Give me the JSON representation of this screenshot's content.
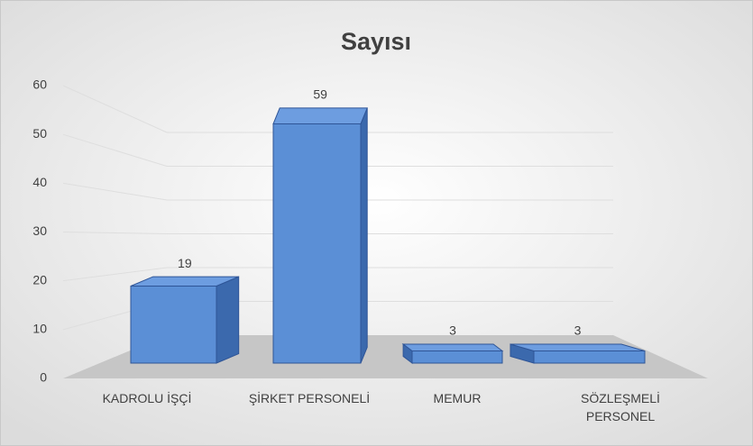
{
  "chart_data": {
    "type": "bar",
    "title": "Sayısı",
    "categories": [
      "KADROLU İŞÇİ",
      "ŞİRKET PERSONELİ",
      "MEMUR",
      "SÖZLEŞMELİ PERSONEL"
    ],
    "values": [
      19,
      59,
      3,
      3
    ],
    "color": "#5b8fd6",
    "ylim": [
      0,
      60
    ],
    "yticks": [
      0,
      10,
      20,
      30,
      40,
      50,
      60
    ],
    "grid": true
  }
}
